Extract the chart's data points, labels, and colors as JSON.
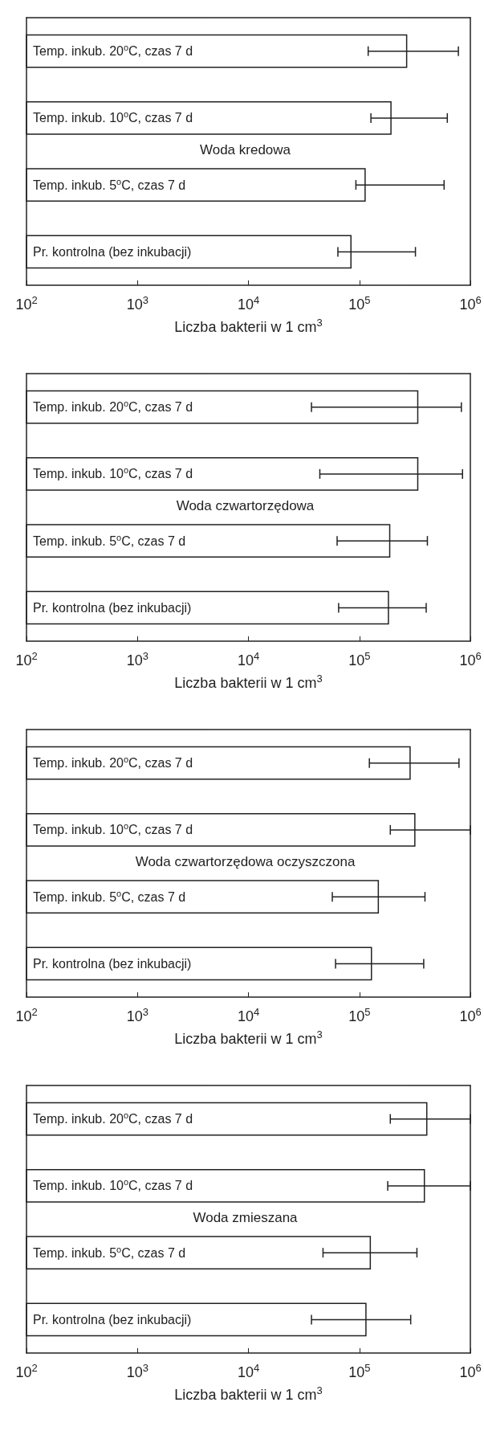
{
  "chart_data": [
    {
      "type": "bar",
      "orientation": "horizontal",
      "log": "x",
      "categories": [
        "Temp. inkub. 20$^{o}$C, czas 7 d",
        "Temp. inkub. 10$^{o}$C, czas 7 d",
        "Temp. inkub. 5$^{o}$C, czas 7 d",
        "Pr. kontrolna (bez inkubacji)"
      ],
      "values": [
        270000,
        195000,
        114000,
        85000
      ],
      "color": "#ffffff",
      "errors": [
        [
          120000,
          780000
        ],
        [
          127000,
          620000
        ],
        [
          93000,
          580000
        ],
        [
          64000,
          320000
        ]
      ],
      "xlim": [
        100,
        1000000
      ],
      "xticks": [
        {
          "value": 100,
          "label": "10$^{2}$"
        },
        {
          "value": 1000,
          "label": "10$^{3}$"
        },
        {
          "value": 10000,
          "label": "10$^{4}$"
        },
        {
          "value": 100000,
          "label": "10$^{5}$"
        },
        {
          "value": 1000000,
          "label": "10$^{6}$"
        }
      ],
      "xlabel": "Liczba bakterii w 1 cm$^{3}$",
      "annotations": [
        "Woda kredowa"
      ]
    },
    {
      "type": "bar",
      "orientation": "horizontal",
      "log": "x",
      "categories": [
        "Temp. inkub. 20$^{o}$C, czas 7 d",
        "Temp. inkub. 10$^{o}$C, czas 7 d",
        "Temp. inkub. 5$^{o}$C, czas 7 d",
        "Pr. kontrolna (bez inkubacji)"
      ],
      "values": [
        340000,
        340000,
        190000,
        185000
      ],
      "color": "#ffffff",
      "errors": [
        [
          37000,
          830000
        ],
        [
          44000,
          850000
        ],
        [
          63000,
          410000
        ],
        [
          65000,
          400000
        ]
      ],
      "xlim": [
        100,
        1000000
      ],
      "xticks": [
        {
          "value": 100,
          "label": "10$^{2}$"
        },
        {
          "value": 1000,
          "label": "10$^{3}$"
        },
        {
          "value": 10000,
          "label": "10$^{4}$"
        },
        {
          "value": 100000,
          "label": "10$^{5}$"
        },
        {
          "value": 1000000,
          "label": "10$^{6}$"
        }
      ],
      "xlabel": "Liczba bakterii w 1 cm$^{3}$",
      "annotations": [
        "Woda czwartorzędowa"
      ]
    },
    {
      "type": "bar",
      "orientation": "horizontal",
      "log": "x",
      "categories": [
        "Temp. inkub. 20$^{o}$C, czas 7 d",
        "Temp. inkub. 10$^{o}$C, czas 7 d",
        "Temp. inkub. 5$^{o}$C, czas 7 d",
        "Pr. kontrolna (bez inkubacji)"
      ],
      "values": [
        290000,
        320000,
        150000,
        130000
      ],
      "color": "#ffffff",
      "errors": [
        [
          123000,
          790000
        ],
        [
          190000,
          1000000
        ],
        [
          57000,
          390000
        ],
        [
          61000,
          380000
        ]
      ],
      "xlim": [
        100,
        1000000
      ],
      "xticks": [
        {
          "value": 100,
          "label": "10$^{2}$"
        },
        {
          "value": 1000,
          "label": "10$^{3}$"
        },
        {
          "value": 10000,
          "label": "10$^{4}$"
        },
        {
          "value": 100000,
          "label": "10$^{5}$"
        },
        {
          "value": 1000000,
          "label": "10$^{6}$"
        }
      ],
      "xlabel": "Liczba bakterii w 1 cm$^{3}$",
      "annotations": [
        "Woda czwartorzędowa oczyszczona"
      ]
    },
    {
      "type": "bar",
      "orientation": "horizontal",
      "log": "x",
      "categories": [
        "Temp. inkub. 20$^{o}$C, czas 7 d",
        "Temp. inkub. 10$^{o}$C, czas 7 d",
        "Temp. inkub. 5$^{o}$C, czas 7 d",
        "Pr. kontrolna (bez inkubacji)"
      ],
      "values": [
        410000,
        390000,
        127000,
        116000
      ],
      "color": "#ffffff",
      "errors": [
        [
          190000,
          1000000
        ],
        [
          180000,
          1000000
        ],
        [
          47000,
          330000
        ],
        [
          37000,
          290000
        ]
      ],
      "xlim": [
        100,
        1000000
      ],
      "xticks": [
        {
          "value": 100,
          "label": "10$^{2}$"
        },
        {
          "value": 1000,
          "label": "10$^{3}$"
        },
        {
          "value": 10000,
          "label": "10$^{4}$"
        },
        {
          "value": 100000,
          "label": "10$^{5}$"
        },
        {
          "value": 1000000,
          "label": "10$^{6}$"
        }
      ],
      "xlabel": "Liczba bakterii w 1 cm$^{3}$",
      "annotations": [
        "Woda zmieszana"
      ]
    }
  ]
}
